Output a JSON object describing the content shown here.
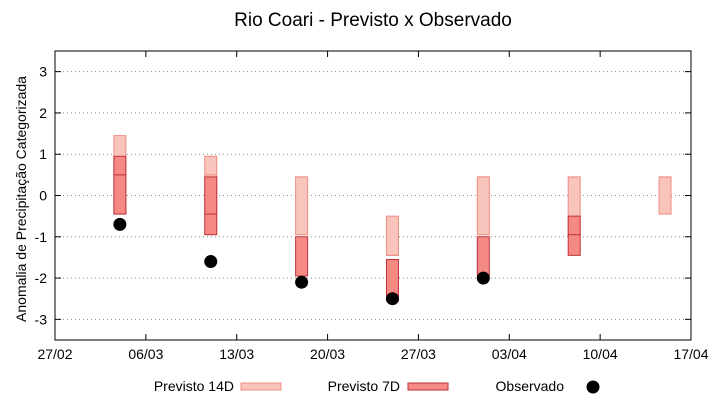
{
  "chart_data": {
    "type": "range-bar",
    "title": "Rio Coari - Previsto x Observado",
    "xlabel": "",
    "ylabel": "Anomalia de Precipitação Categorizada",
    "ylim": [
      -3.5,
      3.5
    ],
    "yticks": [
      -3,
      -2,
      -1,
      0,
      1,
      2,
      3
    ],
    "x_ticks": [
      "27/02",
      "06/03",
      "13/03",
      "20/03",
      "27/03",
      "03/04",
      "10/04",
      "17/04"
    ],
    "grid": "horizontal-dotted",
    "legend_position": "bottom",
    "series": [
      {
        "name": "Previsto 14D",
        "color": "#f8c4bb",
        "stroke": "#f08c80",
        "weeks": [
          {
            "x": 5,
            "low": -0.45,
            "mid": 0.5,
            "high": 1.45
          },
          {
            "x": 12,
            "low": -0.45,
            "mid": 0.5,
            "high": 0.95
          },
          {
            "x": 19,
            "low": -0.95,
            "mid": 0.45,
            "high": 0.45
          },
          {
            "x": 26,
            "low": -1.45,
            "mid": -1.45,
            "high": -0.5
          },
          {
            "x": 33,
            "low": -0.95,
            "mid": 0.45,
            "high": 0.45
          },
          {
            "x": 40,
            "low": -0.95,
            "mid": 0.45,
            "high": 0.45
          },
          {
            "x": 47,
            "low": -0.45,
            "mid": 0.45,
            "high": 0.45
          }
        ]
      },
      {
        "name": "Previsto 7D",
        "color": "#f58a85",
        "stroke": "#c0303a",
        "weeks": [
          {
            "x": 5,
            "low": -0.45,
            "mid": 0.5,
            "high": 0.95
          },
          {
            "x": 12,
            "low": -0.95,
            "mid": -0.45,
            "high": 0.45
          },
          {
            "x": 19,
            "low": -1.95,
            "mid": -1.95,
            "high": -1.0
          },
          {
            "x": 26,
            "low": -2.55,
            "mid": -2.5,
            "high": -1.55
          },
          {
            "x": 33,
            "low": -1.95,
            "mid": -1.95,
            "high": -1.0
          },
          {
            "x": 40,
            "low": -1.45,
            "mid": -0.95,
            "high": -0.5
          }
        ]
      },
      {
        "name": "Observado",
        "color": "#000000",
        "points": [
          {
            "x": 5,
            "y": -0.7
          },
          {
            "x": 12,
            "y": -1.6
          },
          {
            "x": 19,
            "y": -2.1
          },
          {
            "x": 26,
            "y": -2.5
          },
          {
            "x": 33,
            "y": -2.0
          }
        ]
      }
    ]
  }
}
